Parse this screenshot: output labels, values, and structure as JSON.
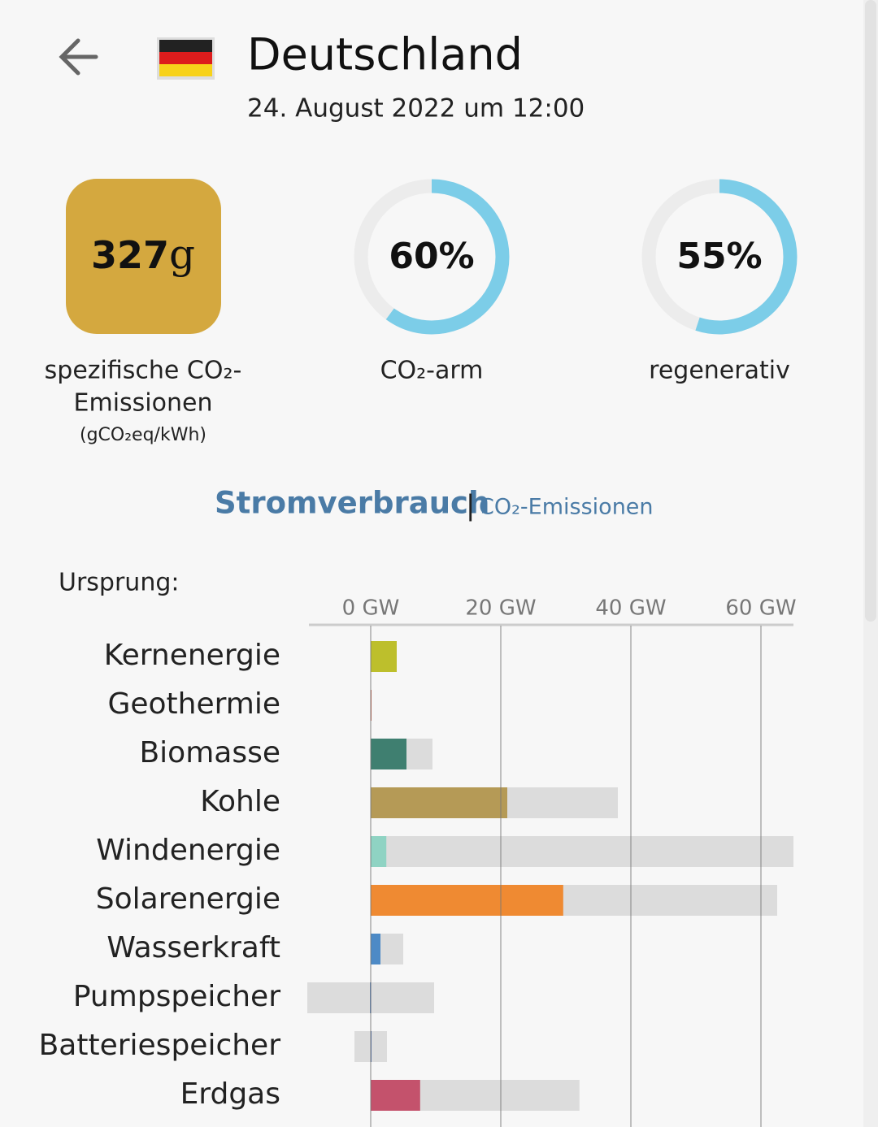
{
  "header": {
    "title": "Deutschland",
    "date": "24. August 2022 um 12:00"
  },
  "metrics": [
    {
      "value": 327,
      "unit": "g",
      "label_lines": [
        "spezifische CO₂-",
        "Emissionen"
      ],
      "sublabel": "(gCO₂eq/kWh)",
      "color": "#d4a83f"
    },
    {
      "value": {
        "value": 60,
        "label": "60%"
      },
      "label": "CO₂-arm",
      "color": "#7ccde8"
    },
    {
      "value": {
        "value": 55,
        "label": "55%"
      },
      "label": "regenerativ",
      "color": "#7ccde8"
    }
  ],
  "tabs": {
    "active": "Stromverbrauch",
    "separator": "|",
    "other": "CO₂-Emissionen"
  },
  "chart_data": {
    "type": "bar",
    "orientation": "horizontal",
    "title": "Ursprung:",
    "categories": [
      "Kernenergie",
      "Geothermie",
      "Biomasse",
      "Kohle",
      "Windenergie",
      "Solarenergie",
      "Wasserkraft",
      "Pumpspeicher",
      "Batteriespeicher",
      "Erdgas"
    ],
    "values": [
      4,
      0,
      5.5,
      21,
      2.4,
      29.6,
      1.5,
      -0.1,
      0,
      7.6
    ],
    "colors": [
      "#bdbf2c",
      "#c9614a",
      "#3f7f70",
      "#b59a56",
      "#8fd3c3",
      "#ef8a32",
      "#4d8ac6",
      "#3c6fb0",
      "#4d6fb0",
      "#c4526c"
    ],
    "capacity": [
      4,
      0.1,
      9.5,
      38,
      65,
      62.5,
      5,
      9.75,
      2.5,
      32.1
    ],
    "capacity_min": [
      0,
      0,
      0,
      0,
      0,
      0,
      0,
      -9.75,
      -2.5,
      0
    ],
    "capacity_color": "#dcdcdc",
    "xlim": [
      -9.5,
      65
    ],
    "xticks": [
      {
        "value": 0,
        "label": "0 GW"
      },
      {
        "value": 20,
        "label": "20 GW"
      },
      {
        "value": 40,
        "label": "40 GW"
      },
      {
        "value": 60,
        "label": "60 GW"
      }
    ],
    "grid": true
  }
}
